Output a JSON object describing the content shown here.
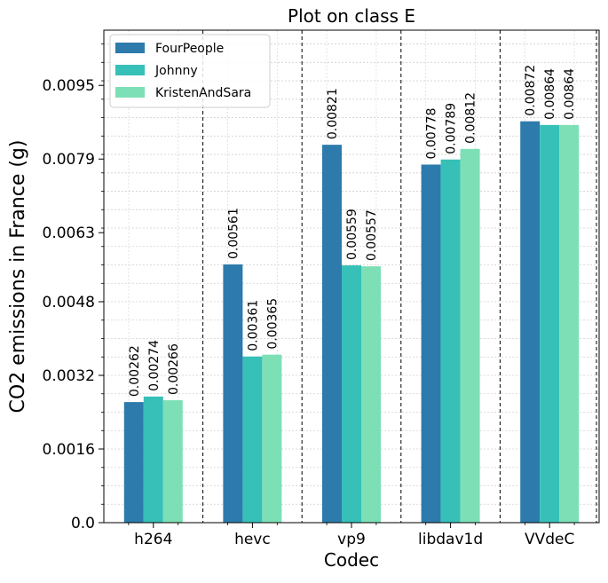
{
  "chart_data": {
    "type": "bar",
    "title": "Plot on class E",
    "xlabel": "Codec",
    "ylabel": "CO2 emissions in France (g)",
    "categories": [
      "h264",
      "hevc",
      "vp9",
      "libdav1d",
      "VVdeC"
    ],
    "yticks": [
      "0.0",
      "0.0016",
      "0.0032",
      "0.0048",
      "0.0063",
      "0.0079",
      "0.0095"
    ],
    "ytick_values": [
      0.0,
      0.0016,
      0.0032,
      0.0048,
      0.0063,
      0.0079,
      0.0095
    ],
    "ylim": [
      0,
      0.0107
    ],
    "grid": true,
    "legend_position": "top-left",
    "series": [
      {
        "name": "FourPeople",
        "color": "#2c7bac",
        "values": [
          0.00262,
          0.00561,
          0.00821,
          0.00778,
          0.00872
        ],
        "labels": [
          "0.00262",
          "0.00561",
          "0.00821",
          "0.00778",
          "0.00872"
        ]
      },
      {
        "name": "Johnny",
        "color": "#36c0b8",
        "values": [
          0.00274,
          0.00361,
          0.00559,
          0.00789,
          0.00864
        ],
        "labels": [
          "0.00274",
          "0.00361",
          "0.00559",
          "0.00789",
          "0.00864"
        ]
      },
      {
        "name": "KristenAndSara",
        "color": "#7ddfb6",
        "values": [
          0.00266,
          0.00365,
          0.00557,
          0.00812,
          0.00864
        ],
        "labels": [
          "0.00266",
          "0.00365",
          "0.00557",
          "0.00812",
          "0.00864"
        ]
      }
    ]
  }
}
